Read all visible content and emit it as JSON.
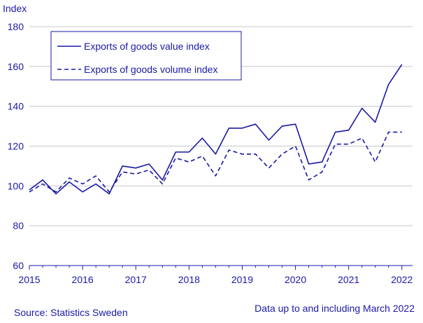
{
  "chart_data": {
    "type": "line",
    "ylabel": "Index",
    "ylim": [
      60,
      180
    ],
    "yticks": [
      60,
      80,
      100,
      120,
      140,
      160,
      180
    ],
    "xlim": [
      2015,
      2022.2
    ],
    "year_labels": [
      "2015",
      "2016",
      "2017",
      "2018",
      "2019",
      "2020",
      "2021",
      "2022"
    ],
    "grid": "horizontal",
    "legend_position": "top-left",
    "x": [
      2015,
      2015.25,
      2015.5,
      2015.75,
      2016,
      2016.25,
      2016.5,
      2016.75,
      2017,
      2017.25,
      2017.5,
      2017.75,
      2018,
      2018.25,
      2018.5,
      2018.75,
      2019,
      2019.25,
      2019.5,
      2019.75,
      2020,
      2020.25,
      2020.5,
      2020.75,
      2021,
      2021.25,
      2021.5,
      2021.75,
      2022
    ],
    "series": [
      {
        "name": "Exports of goods value index",
        "style": "solid",
        "values": [
          98,
          103,
          96,
          102,
          97,
          101,
          96,
          110,
          109,
          111,
          103,
          117,
          117,
          124,
          116,
          129,
          129,
          131,
          123,
          130,
          131,
          111,
          112,
          127,
          128,
          139,
          132,
          151,
          161
        ]
      },
      {
        "name": "Exports of goods volume index",
        "style": "dashed",
        "values": [
          97,
          101,
          97,
          104,
          101,
          105,
          97,
          107,
          106,
          108,
          101,
          114,
          112,
          115,
          105,
          118,
          116,
          116,
          109,
          116,
          120,
          103,
          107,
          121,
          121,
          124,
          112,
          127,
          127
        ]
      }
    ],
    "color": "#1a1aa6"
  },
  "footer": {
    "source": "Source: Statistics Sweden",
    "note": "Data up to and including March 2022"
  }
}
